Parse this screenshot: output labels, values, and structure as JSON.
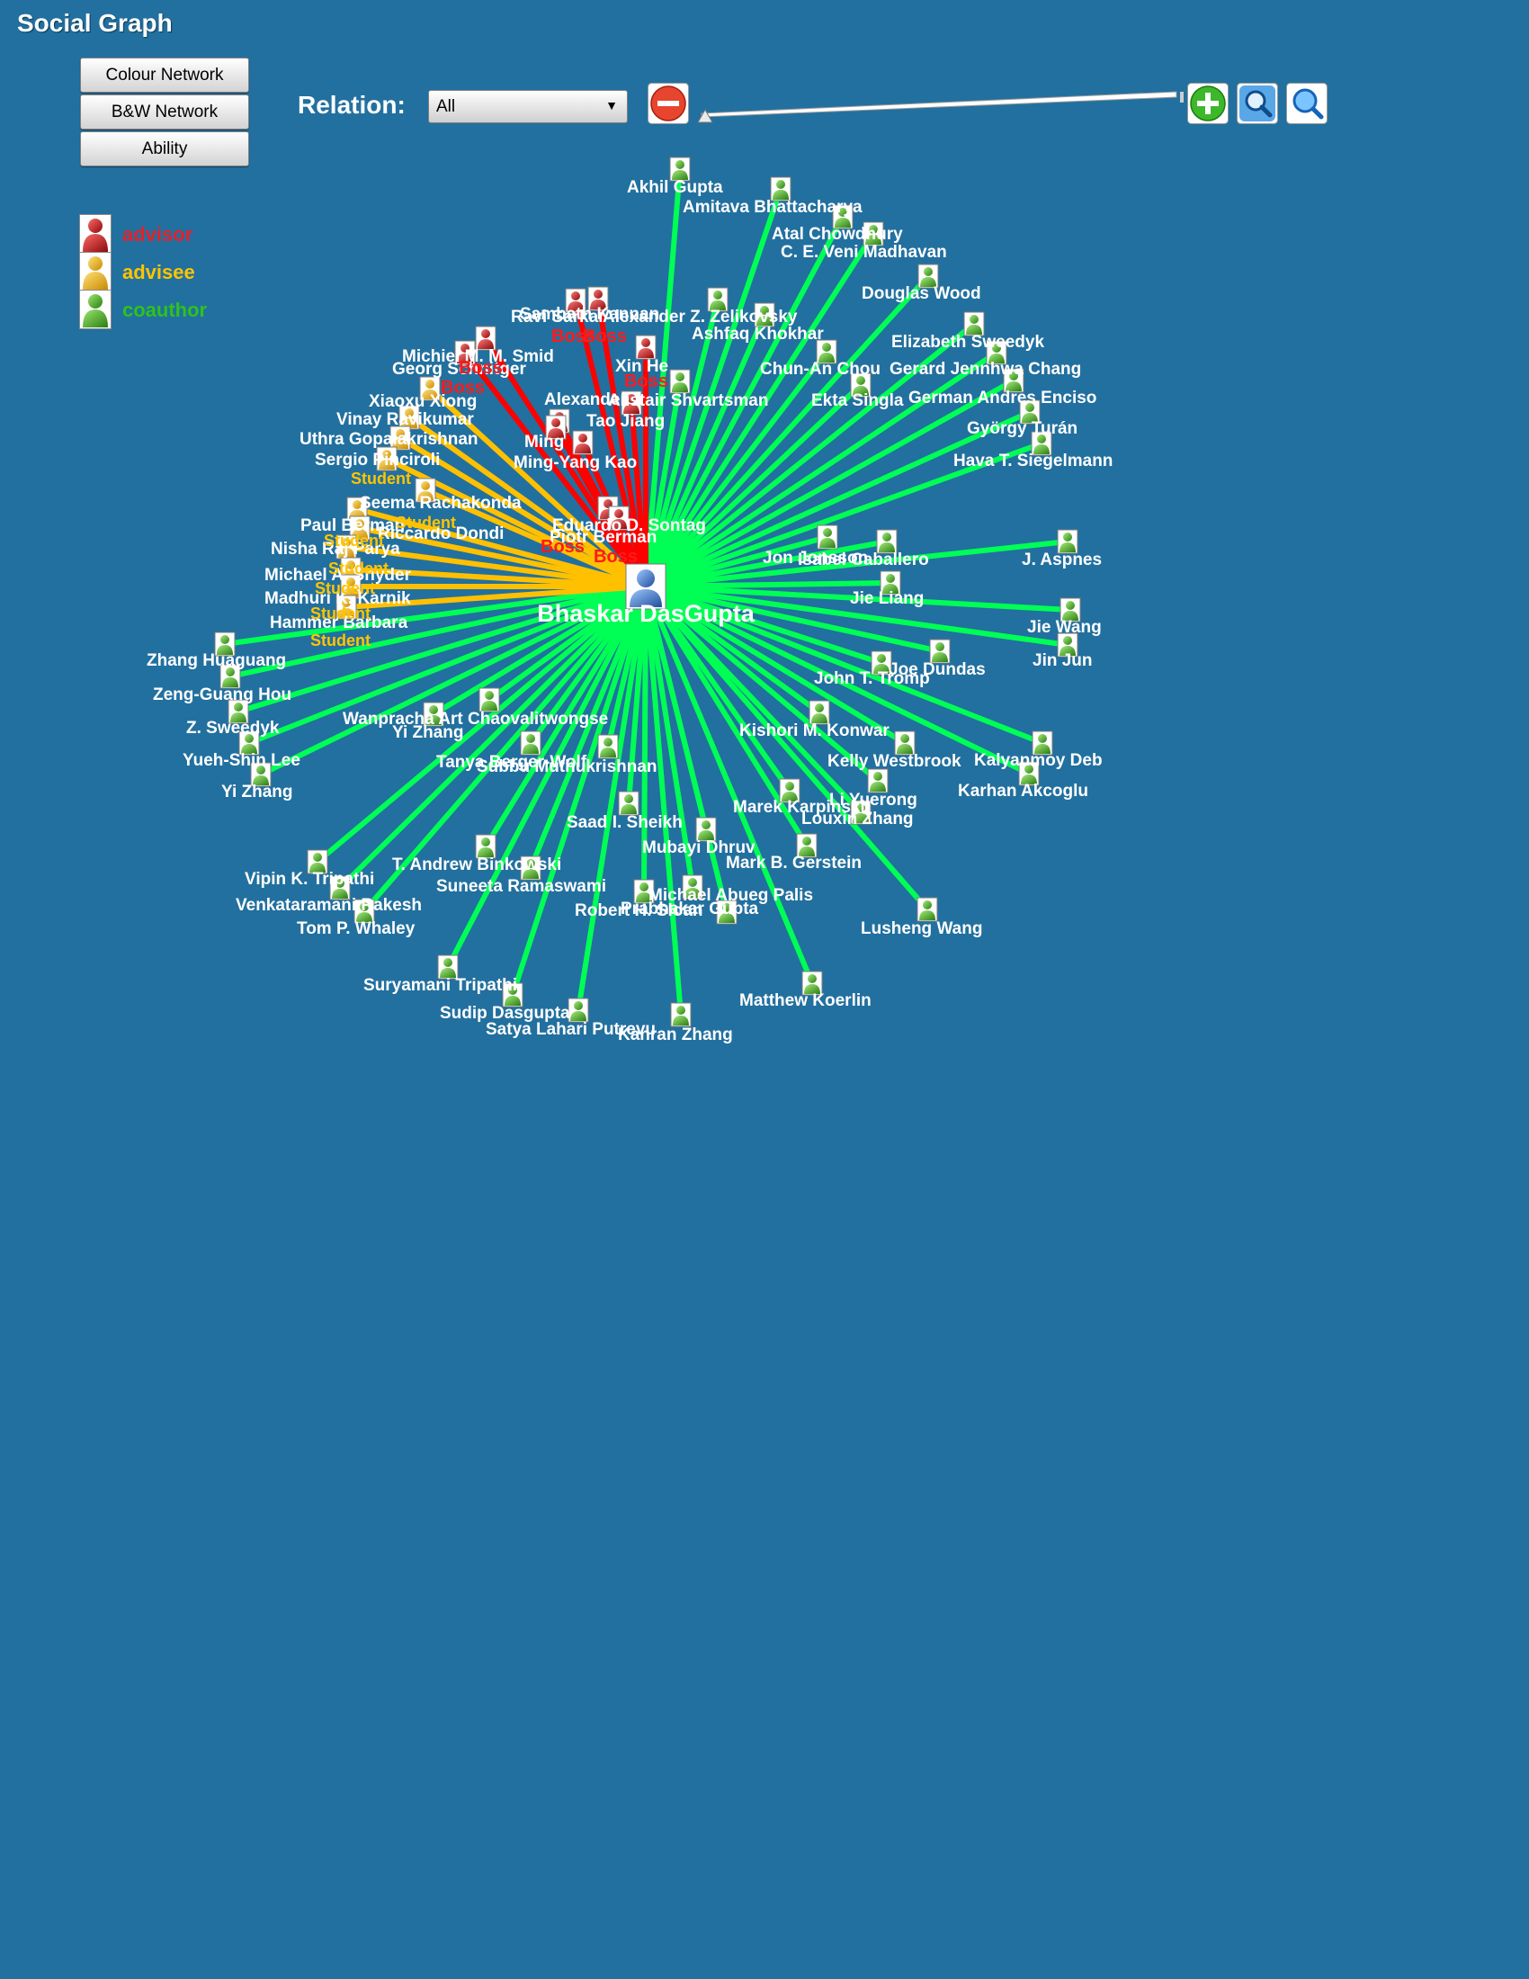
{
  "app": {
    "title": "Social Graph"
  },
  "nav_buttons": [
    "Colour Network",
    "B&W Network",
    "Ability"
  ],
  "legend": [
    {
      "role": "advisor",
      "label": "advisor",
      "color": "#e6202a"
    },
    {
      "role": "advisee",
      "label": "advisee",
      "color": "#ffc400"
    },
    {
      "role": "coauthor",
      "label": "coauthor",
      "color": "#2ec21e"
    }
  ],
  "toolbar": {
    "relation_label": "Relation:",
    "relation_value": "All",
    "zoom_out_icon": "minus-circle-icon",
    "zoom_in_icon": "plus-circle-icon",
    "search_icons": [
      "magnifier-icon",
      "magnifier-icon"
    ]
  },
  "colors": {
    "background": "#22709f",
    "advisor_edge": "#ff0000",
    "advisee_edge": "#ffc000",
    "coauthor_edge": "#00ff55",
    "boss_tag": "#ff1a1a",
    "student_tag": "#ffc400",
    "node_label": "#ffffff"
  },
  "graph": {
    "center": {
      "name": "Bhaskar DasGupta"
    },
    "advisors": [
      {
        "name": "Sambath Kannan",
        "tag": "Boss"
      },
      {
        "name": "Ravi Sarkar",
        "tag": "Boss"
      },
      {
        "name": "Michiel M. M. Smid",
        "tag": "Boss"
      },
      {
        "name": "Georg Schnitger",
        "tag": "Boss"
      },
      {
        "name": "Xin He",
        "tag": "Boss"
      },
      {
        "name": "Alexander",
        "tag": "Boss"
      },
      {
        "name": "Tao Jiang",
        "tag": "Boss"
      },
      {
        "name": "Ming",
        "tag": "Boss"
      },
      {
        "name": "Ming-Yang Kao",
        "tag": "Boss"
      },
      {
        "name": "Eduardo D. Sontag",
        "tag": "Boss"
      },
      {
        "name": "Piotr Berman",
        "tag": "Boss"
      }
    ],
    "advisees": [
      {
        "name": "Xiaoxu Xiong",
        "tag": "Student"
      },
      {
        "name": "Vinay Ravikumar",
        "tag": "Student"
      },
      {
        "name": "Uthra Gopalakrishnan",
        "tag": "Student"
      },
      {
        "name": "Sergio Pinciroli",
        "tag": "Student"
      },
      {
        "name": "Seema Rachakonda",
        "tag": "Student"
      },
      {
        "name": "Paul Berman",
        "tag": "Student"
      },
      {
        "name": "Riccardo Dondi",
        "tag": "Student"
      },
      {
        "name": "Nisha Raj Parya",
        "tag": "Student"
      },
      {
        "name": "Michael A. Snyder",
        "tag": "Student"
      },
      {
        "name": "Madhuri K. Karnik",
        "tag": "Student"
      },
      {
        "name": "Hammer Barbara",
        "tag": "Student"
      }
    ],
    "coauthors": [
      {
        "name": "Akhil Gupta"
      },
      {
        "name": "Amitava Bhattacharya"
      },
      {
        "name": "Atal Chowdhury"
      },
      {
        "name": "C. E. Veni Madhavan"
      },
      {
        "name": "Douglas Wood"
      },
      {
        "name": "Alexander Z. Zelikovsky"
      },
      {
        "name": "Ashfaq Khokhar"
      },
      {
        "name": "Elizabeth Sweedyk"
      },
      {
        "name": "Chun-An Chou"
      },
      {
        "name": "Gerard Jennhwa Chang"
      },
      {
        "name": "Alistair Shvartsman"
      },
      {
        "name": "Ekta Singla"
      },
      {
        "name": "German Andres Enciso"
      },
      {
        "name": "György Turán"
      },
      {
        "name": "Hava T. Siegelmann"
      },
      {
        "name": "Jon Jonsson"
      },
      {
        "name": "Isabel Caballero"
      },
      {
        "name": "J. Aspnes"
      },
      {
        "name": "Jie Liang"
      },
      {
        "name": "Jie Wang"
      },
      {
        "name": "Jin Jun"
      },
      {
        "name": "Joe Dundas"
      },
      {
        "name": "John T. Tromp"
      },
      {
        "name": "Zhang Huaguang"
      },
      {
        "name": "Zeng-Guang Hou"
      },
      {
        "name": "Z. Sweedyk"
      },
      {
        "name": "Yueh-Shin Lee"
      },
      {
        "name": "Yi Zhang"
      },
      {
        "name": "Wanpracha Art Chaovalitwongse"
      },
      {
        "name": "Yi Zhang"
      },
      {
        "name": "Tanya Berger-Wolf"
      },
      {
        "name": "Subbu Muthukrishnan"
      },
      {
        "name": "Kishori M. Konwar"
      },
      {
        "name": "Kelly Westbrook"
      },
      {
        "name": "Kalyanmoy Deb"
      },
      {
        "name": "Karhan Akcoglu"
      },
      {
        "name": "Marek Karpinski"
      },
      {
        "name": "Li Yuerong"
      },
      {
        "name": "Louxin Zhang"
      },
      {
        "name": "Saad I. Sheikh"
      },
      {
        "name": "Mubayi Dhruv"
      },
      {
        "name": "Mark B. Gerstein"
      },
      {
        "name": "Vipin K. Tripathi"
      },
      {
        "name": "Venkataramani Rakesh"
      },
      {
        "name": "Tom P. Whaley"
      },
      {
        "name": "T. Andrew Binkowski"
      },
      {
        "name": "Suneeta Ramaswami"
      },
      {
        "name": "Michael Abueg Palis"
      },
      {
        "name": "Robert H. Sloan"
      },
      {
        "name": "Lusheng Wang"
      },
      {
        "name": "Suryamani Tripathi"
      },
      {
        "name": "Sudip Dasgupta"
      },
      {
        "name": "Satya Lahari Putrevu"
      },
      {
        "name": "Kanran Zhang"
      },
      {
        "name": "Matthew Koerlin"
      },
      {
        "name": "Prabhakar Gupta"
      }
    ]
  }
}
